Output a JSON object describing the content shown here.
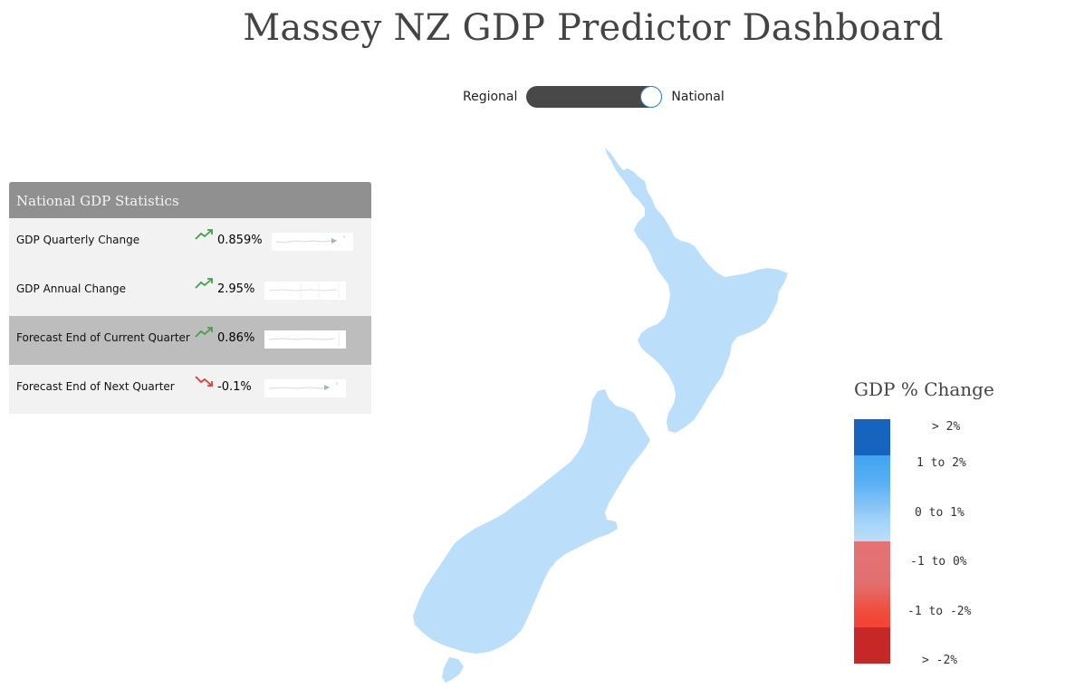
{
  "title": "Massey NZ GDP Predictor Dashboard",
  "toggle": {
    "left_label": "Regional",
    "right_label": "National",
    "selected": "National"
  },
  "stats": {
    "header": "National GDP Statistics",
    "rows": [
      {
        "label": "GDP Quarterly Change",
        "value": "0.859%",
        "trend": "up",
        "highlighted": false
      },
      {
        "label": "GDP Annual Change",
        "value": "2.95%",
        "trend": "up",
        "highlighted": false
      },
      {
        "label": "Forecast End of Current Quarter",
        "value": "0.86%",
        "trend": "up",
        "highlighted": true
      },
      {
        "label": "Forecast End of Next Quarter",
        "value": "-0.1%",
        "trend": "down",
        "highlighted": false
      }
    ]
  },
  "legend": {
    "title": "GDP % Change",
    "items": [
      "> 2%",
      "1 to 2%",
      "0 to 1%",
      "-1 to 0%",
      "-1 to -2%",
      "> -2%"
    ]
  },
  "colors": {
    "trend_up": "#43a047",
    "trend_down": "#e53935",
    "map_fill": "#bbdefb",
    "header_bg": "#909090",
    "highlight_row": "#bdbdbd"
  }
}
